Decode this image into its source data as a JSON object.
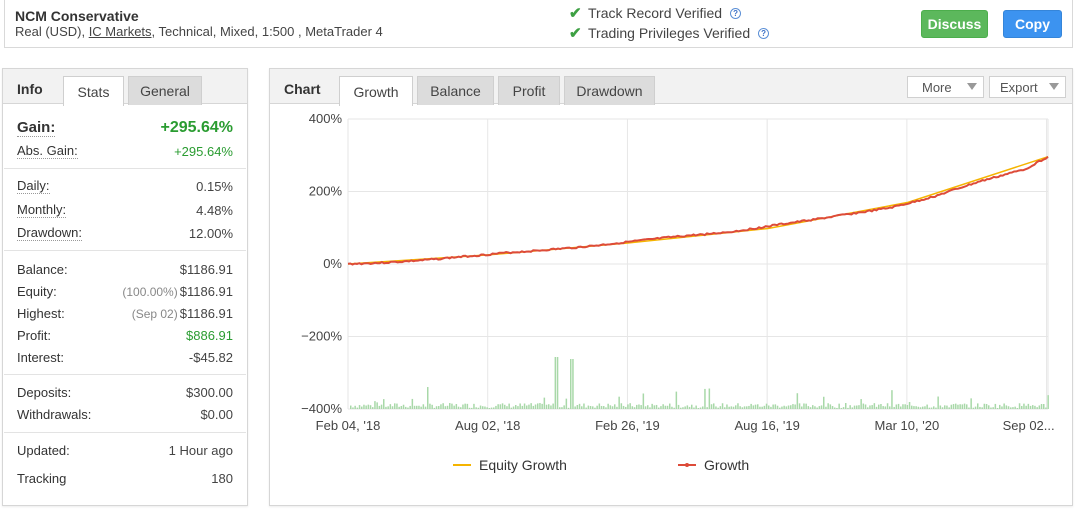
{
  "header": {
    "title": "NCM Conservative",
    "subtitle_pre": "Real (USD), ",
    "subtitle_link": "IC Markets",
    "subtitle_post": ", Technical, Mixed, 1:500 , MetaTrader 4",
    "verified": [
      "Track Record Verified",
      "Trading Privileges Verified"
    ],
    "discuss_label": "Discuss",
    "copy_label": "Copy"
  },
  "info": {
    "title": "Info",
    "tabs": [
      "Stats",
      "General"
    ],
    "gain_label": "Gain:",
    "gain_value": "+295.64%",
    "abs_gain_label": "Abs. Gain:",
    "abs_gain_value": "+295.64%",
    "daily_label": "Daily:",
    "daily_value": "0.15%",
    "monthly_label": "Monthly:",
    "monthly_value": "4.48%",
    "drawdown_label": "Drawdown:",
    "drawdown_value": "12.00%",
    "balance_label": "Balance:",
    "balance_value": "$1186.91",
    "equity_label": "Equity:",
    "equity_note": "(100.00%)",
    "equity_value": "$1186.91",
    "highest_label": "Highest:",
    "highest_note": "(Sep 02)",
    "highest_value": "$1186.91",
    "profit_label": "Profit:",
    "profit_value": "$886.91",
    "interest_label": "Interest:",
    "interest_value": "-$45.82",
    "deposits_label": "Deposits:",
    "deposits_value": "$300.00",
    "withdrawals_label": "Withdrawals:",
    "withdrawals_value": "$0.00",
    "updated_label": "Updated:",
    "updated_value": "1 Hour ago",
    "tracking_label": "Tracking",
    "tracking_value": "180"
  },
  "chart_panel": {
    "title": "Chart",
    "tabs": [
      "Growth",
      "Balance",
      "Profit",
      "Drawdown"
    ],
    "more_label": "More",
    "export_label": "Export"
  },
  "colors": {
    "growth": "#dd4b39",
    "equity": "#f5b400",
    "volume": "#a8d8a8",
    "positive": "#2a9c31"
  },
  "chart_data": {
    "type": "line",
    "title": "",
    "x_ticks": [
      "Feb 04, '18",
      "Aug 02, '18",
      "Feb 26, '19",
      "Aug 16, '19",
      "Mar 10, '20",
      "Sep 02..."
    ],
    "y_ticks": [
      "400%",
      "200%",
      "0%",
      "−200%",
      "−400%"
    ],
    "ylim": [
      -400,
      400
    ],
    "legend": [
      "Equity Growth",
      "Growth"
    ],
    "legend_position": "bottom",
    "grid": true,
    "series": [
      {
        "name": "Growth",
        "x": [
          "Feb 04, '18",
          "Mar '18",
          "Apr '18",
          "May '18",
          "Jun '18",
          "Jul '18",
          "Aug 02, '18",
          "Sep '18",
          "Oct '18",
          "Nov '18",
          "Dec '18",
          "Jan '19",
          "Feb 26, '19",
          "Mar '19",
          "Apr '19",
          "May '19",
          "Jun '19",
          "Jul '19",
          "Aug 16, '19",
          "Sep '19",
          "Oct '19",
          "Nov '19",
          "Dec '19",
          "Jan '20",
          "Feb '20",
          "Mar 10, '20",
          "Apr '20",
          "May '20",
          "Jun '20",
          "Jul '20",
          "Aug '20",
          "Sep 02, '20"
        ],
        "values": [
          0,
          2,
          5,
          9,
          14,
          20,
          25,
          31,
          35,
          40,
          45,
          51,
          58,
          65,
          72,
          78,
          83,
          89,
          98,
          108,
          117,
          126,
          136,
          145,
          155,
          170,
          187,
          208,
          228,
          245,
          262,
          296
        ]
      },
      {
        "name": "Equity Growth",
        "x": [
          "Feb 04, '18",
          "Aug 02, '18",
          "Feb 26, '19",
          "Aug 16, '19",
          "Mar 10, '20",
          "Sep 02, '20"
        ],
        "values": [
          0,
          25,
          58,
          98,
          170,
          296
        ]
      }
    ]
  }
}
